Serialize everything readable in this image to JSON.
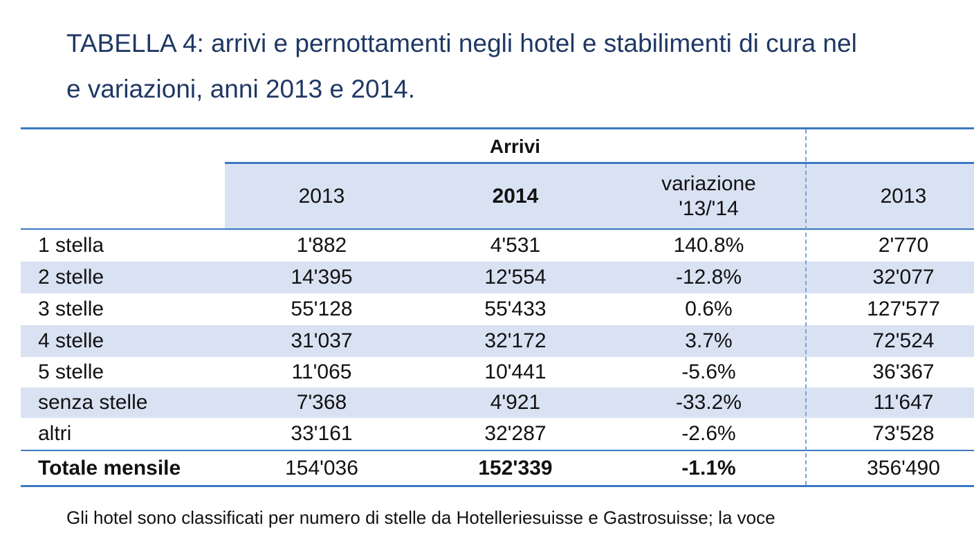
{
  "title": {
    "line1": "TABELLA 4: arrivi e pernottamenti negli hotel e stabilimenti di cura nel",
    "line2": "e variazioni, anni 2013 e 2014."
  },
  "table": {
    "group_header": "Arrivi",
    "columns": [
      "2013",
      "2014",
      "variazione '13/'14",
      "2013"
    ],
    "rows": [
      {
        "label": "1 stella",
        "values": [
          "1'882",
          "4'531",
          "140.8%",
          "2'770"
        ]
      },
      {
        "label": "2 stelle",
        "values": [
          "14'395",
          "12'554",
          "-12.8%",
          "32'077"
        ]
      },
      {
        "label": "3 stelle",
        "values": [
          "55'128",
          "55'433",
          "0.6%",
          "127'577"
        ]
      },
      {
        "label": "4 stelle",
        "values": [
          "31'037",
          "32'172",
          "3.7%",
          "72'524"
        ]
      },
      {
        "label": "5 stelle",
        "values": [
          "11'065",
          "10'441",
          "-5.6%",
          "36'367"
        ]
      },
      {
        "label": "senza stelle",
        "values": [
          "7'368",
          "4'921",
          "-33.2%",
          "11'647"
        ]
      },
      {
        "label": "altri",
        "values": [
          "33'161",
          "32'287",
          "-2.6%",
          "73'528"
        ]
      }
    ],
    "total": {
      "label": "Totale mensile",
      "values": [
        "154'036",
        "152'339",
        "-1.1%",
        "356'490"
      ]
    }
  },
  "footnote": "Gli hotel sono classificati per numero di stelle da Hotelleriesuisse e Gastrosuisse; la voce",
  "colors": {
    "title": "#1f3864",
    "rule": "#3b78c2",
    "shade": "#d9e2f3"
  }
}
